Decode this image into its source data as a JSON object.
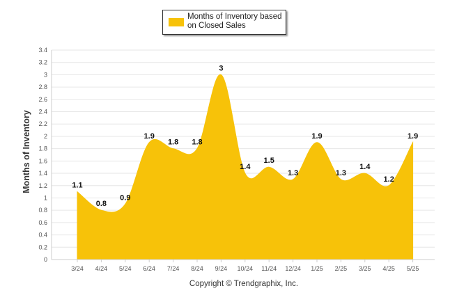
{
  "chart_data": {
    "type": "area",
    "title": "",
    "xlabel": "",
    "ylabel": "Months of Inventory",
    "categories": [
      "3/24",
      "4/24",
      "5/24",
      "6/24",
      "7/24",
      "8/24",
      "9/24",
      "10/24",
      "11/24",
      "12/24",
      "1/25",
      "2/25",
      "3/25",
      "4/25",
      "5/25"
    ],
    "series": [
      {
        "name": "Months of Inventory based on Closed Sales",
        "values": [
          1.1,
          0.8,
          0.9,
          1.9,
          1.8,
          1.8,
          3,
          1.4,
          1.5,
          1.3,
          1.9,
          1.3,
          1.4,
          1.2,
          1.9
        ],
        "labels": [
          "1.1",
          "0.8",
          "0.9",
          "1.9",
          "1.8",
          "1.8",
          "3",
          "1.4",
          "1.5",
          "1.3",
          "1.9",
          "1.3",
          "1.4",
          "1.2",
          "1.9"
        ]
      }
    ],
    "ylim": [
      0,
      3.4
    ],
    "yticks": [
      "0",
      "0.2",
      "0.4",
      "0.6",
      "0.8",
      "1",
      "1.2",
      "1.4",
      "1.6",
      "1.8",
      "2",
      "2.2",
      "2.4",
      "2.6",
      "2.8",
      "3",
      "3.2",
      "3.4"
    ],
    "grid": true,
    "legend_position": "top-center",
    "series_color": "#F7C209"
  },
  "legend": {
    "label": "Months of Inventory based on Closed Sales"
  },
  "footer": {
    "copyright": "Copyright © Trendgraphix, Inc."
  }
}
